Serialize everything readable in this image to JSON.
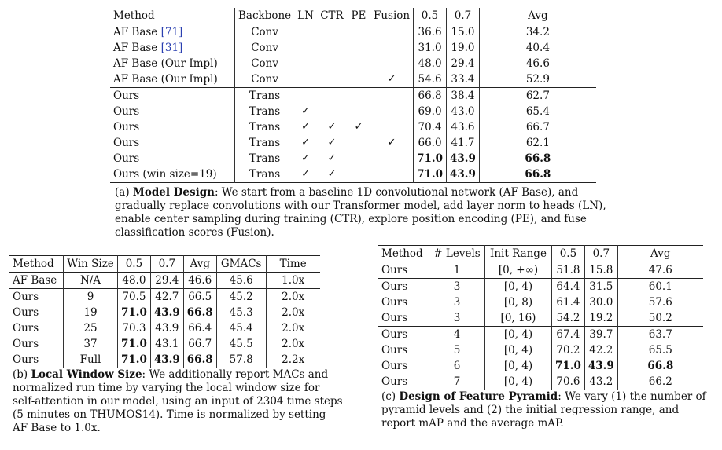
{
  "table_a": {
    "headers": [
      "Method",
      "Backbone",
      "LN",
      "CTR",
      "PE",
      "Fusion",
      "0.5",
      "0.7",
      "Avg"
    ],
    "rows": [
      {
        "method": "AF Base ",
        "cite": "[71]",
        "backbone": "Conv",
        "ln": "",
        "ctr": "",
        "pe": "",
        "fusion": "",
        "v05": "36.6",
        "v07": "15.0",
        "avg": "34.2",
        "bold": false
      },
      {
        "method": "AF Base ",
        "cite": "[31]",
        "backbone": "Conv",
        "ln": "",
        "ctr": "",
        "pe": "",
        "fusion": "",
        "v05": "31.0",
        "v07": "19.0",
        "avg": "40.4",
        "bold": false
      },
      {
        "method": "AF Base (Our Impl)",
        "cite": "",
        "backbone": "Conv",
        "ln": "",
        "ctr": "",
        "pe": "",
        "fusion": "",
        "v05": "48.0",
        "v07": "29.4",
        "avg": "46.6",
        "bold": false
      },
      {
        "method": "AF Base (Our Impl)",
        "cite": "",
        "backbone": "Conv",
        "ln": "",
        "ctr": "",
        "pe": "",
        "fusion": "✓",
        "v05": "54.6",
        "v07": "33.4",
        "avg": "52.9",
        "bold": false
      },
      {
        "method": "Ours",
        "cite": "",
        "backbone": "Trans",
        "ln": "",
        "ctr": "",
        "pe": "",
        "fusion": "",
        "v05": "66.8",
        "v07": "38.4",
        "avg": "62.7",
        "bold": false
      },
      {
        "method": "Ours",
        "cite": "",
        "backbone": "Trans",
        "ln": "✓",
        "ctr": "",
        "pe": "",
        "fusion": "",
        "v05": "69.0",
        "v07": "43.0",
        "avg": "65.4",
        "bold": false
      },
      {
        "method": "Ours",
        "cite": "",
        "backbone": "Trans",
        "ln": "✓",
        "ctr": "✓",
        "pe": "✓",
        "fusion": "",
        "v05": "70.4",
        "v07": "43.6",
        "avg": "66.7",
        "bold": false
      },
      {
        "method": "Ours",
        "cite": "",
        "backbone": "Trans",
        "ln": "✓",
        "ctr": "✓",
        "pe": "",
        "fusion": "✓",
        "v05": "66.0",
        "v07": "41.7",
        "avg": "62.1",
        "bold": false
      },
      {
        "method": "Ours",
        "cite": "",
        "backbone": "Trans",
        "ln": "✓",
        "ctr": "✓",
        "pe": "",
        "fusion": "",
        "v05": "71.0",
        "v07": "43.9",
        "avg": "66.8",
        "bold": true
      },
      {
        "method": "Ours (win size=19)",
        "cite": "",
        "backbone": "Trans",
        "ln": "✓",
        "ctr": "✓",
        "pe": "",
        "fusion": "",
        "v05": "71.0",
        "v07": "43.9",
        "avg": "66.8",
        "bold": true
      }
    ],
    "caption_label": "(a) ",
    "caption_bold": "Model Design",
    "caption_text": ": We start from a baseline 1D convolutional network (AF Base), and gradually replace convolutions with our Transformer model, add layer norm to heads (LN), enable center sampling during training (CTR), explore position encoding (PE), and fuse classification scores (Fusion)."
  },
  "table_b": {
    "headers": [
      "Method",
      "Win Size",
      "0.5",
      "0.7",
      "Avg",
      "GMACs",
      "Time"
    ],
    "rows": [
      {
        "method": "AF Base",
        "win": "N/A",
        "v05": "48.0",
        "v07": "29.4",
        "avg": "46.6",
        "gmacs": "45.6",
        "time": "1.0x",
        "b05": false,
        "b07": false,
        "bavg": false
      },
      {
        "method": "Ours",
        "win": "9",
        "v05": "70.5",
        "v07": "42.7",
        "avg": "66.5",
        "gmacs": "45.2",
        "time": "2.0x",
        "b05": false,
        "b07": false,
        "bavg": false
      },
      {
        "method": "Ours",
        "win": "19",
        "v05": "71.0",
        "v07": "43.9",
        "avg": "66.8",
        "gmacs": "45.3",
        "time": "2.0x",
        "b05": true,
        "b07": true,
        "bavg": true
      },
      {
        "method": "Ours",
        "win": "25",
        "v05": "70.3",
        "v07": "43.9",
        "avg": "66.4",
        "gmacs": "45.4",
        "time": "2.0x",
        "b05": false,
        "b07": false,
        "bavg": false
      },
      {
        "method": "Ours",
        "win": "37",
        "v05": "71.0",
        "v07": "43.1",
        "avg": "66.7",
        "gmacs": "45.5",
        "time": "2.0x",
        "b05": true,
        "b07": false,
        "bavg": false
      },
      {
        "method": "Ours",
        "win": "Full",
        "v05": "71.0",
        "v07": "43.9",
        "avg": "66.8",
        "gmacs": "57.8",
        "time": "2.2x",
        "b05": true,
        "b07": true,
        "bavg": true
      }
    ],
    "caption_label": "(b) ",
    "caption_bold": "Local Window Size",
    "caption_text": ": We additionally report MACs and normalized run time by varying the local window size for self-attention in our model, using an input of 2304 time steps (5 minutes on THUMOS14). Time is normalized by setting AF Base to 1.0x."
  },
  "table_c": {
    "headers": [
      "Method",
      "# Levels",
      "Init Range",
      "0.5",
      "0.7",
      "Avg"
    ],
    "rows": [
      {
        "method": "Ours",
        "levels": "1",
        "range": "[0, +∞)",
        "v05": "51.8",
        "v07": "15.8",
        "avg": "47.6",
        "bold": false
      },
      {
        "method": "Ours",
        "levels": "3",
        "range": "[0, 4)",
        "v05": "64.4",
        "v07": "31.5",
        "avg": "60.1",
        "bold": false
      },
      {
        "method": "Ours",
        "levels": "3",
        "range": "[0, 8)",
        "v05": "61.4",
        "v07": "30.0",
        "avg": "57.6",
        "bold": false
      },
      {
        "method": "Ours",
        "levels": "3",
        "range": "[0, 16)",
        "v05": "54.2",
        "v07": "19.2",
        "avg": "50.2",
        "bold": false
      },
      {
        "method": "Ours",
        "levels": "4",
        "range": "[0, 4)",
        "v05": "67.4",
        "v07": "39.7",
        "avg": "63.7",
        "bold": false
      },
      {
        "method": "Ours",
        "levels": "5",
        "range": "[0, 4)",
        "v05": "70.2",
        "v07": "42.2",
        "avg": "65.5",
        "bold": false
      },
      {
        "method": "Ours",
        "levels": "6",
        "range": "[0, 4)",
        "v05": "71.0",
        "v07": "43.9",
        "avg": "66.8",
        "bold": true
      },
      {
        "method": "Ours",
        "levels": "7",
        "range": "[0, 4)",
        "v05": "70.6",
        "v07": "43.2",
        "avg": "66.2",
        "bold": false
      }
    ],
    "caption_label": "(c) ",
    "caption_bold": "Design of Feature Pyramid",
    "caption_text": ": We vary (1) the number of pyramid levels and (2) the initial regression range, and report mAP and the average mAP."
  }
}
